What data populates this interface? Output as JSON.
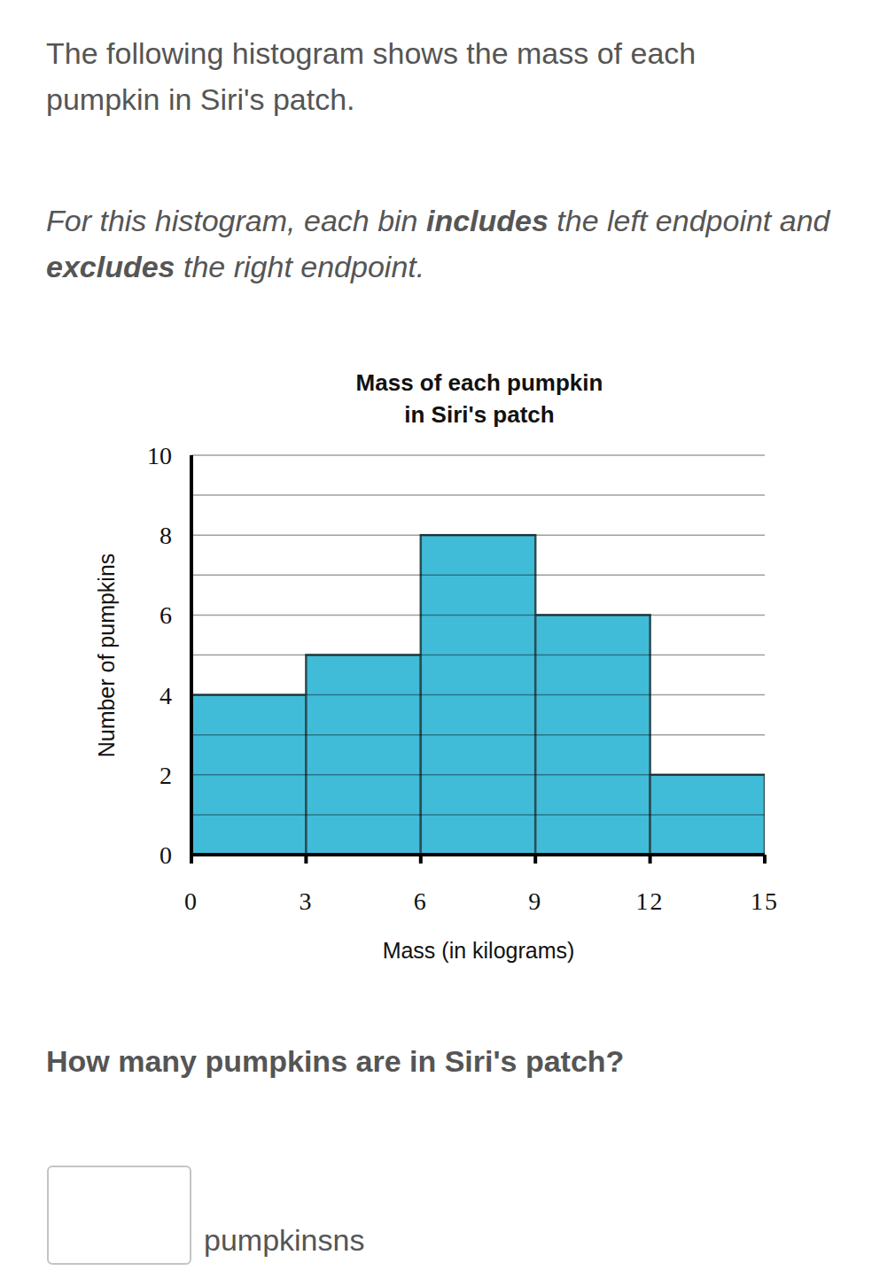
{
  "page": {
    "intro": [
      "The following histogram shows the mass of each",
      "pumpkin in Siri's patch."
    ],
    "note": [
      "For this histogram, each bin ",
      "includes",
      " the left endpoint and ",
      "excludes",
      " the right endpoint."
    ],
    "question": "How many pumpkins are in Siri's patch?",
    "answer_unit": "pumpkinsns"
  },
  "chart_data": {
    "type": "histogram",
    "title": [
      "Mass of each pumpkin",
      "in Siri's patch"
    ],
    "x_label": "Mass (in kilograms)",
    "y_label": "Number of pumpkins",
    "bins": [
      0,
      3,
      6,
      9,
      12,
      15
    ],
    "values": [
      4,
      5,
      8,
      6,
      2
    ],
    "color": "#41bcd8",
    "xlim": [
      0,
      15
    ],
    "xticks": [
      0,
      3,
      6,
      9,
      12,
      15
    ],
    "ylim": [
      0,
      10
    ],
    "yticks": [
      0,
      2,
      4,
      6,
      8,
      10
    ],
    "grid": true
  }
}
